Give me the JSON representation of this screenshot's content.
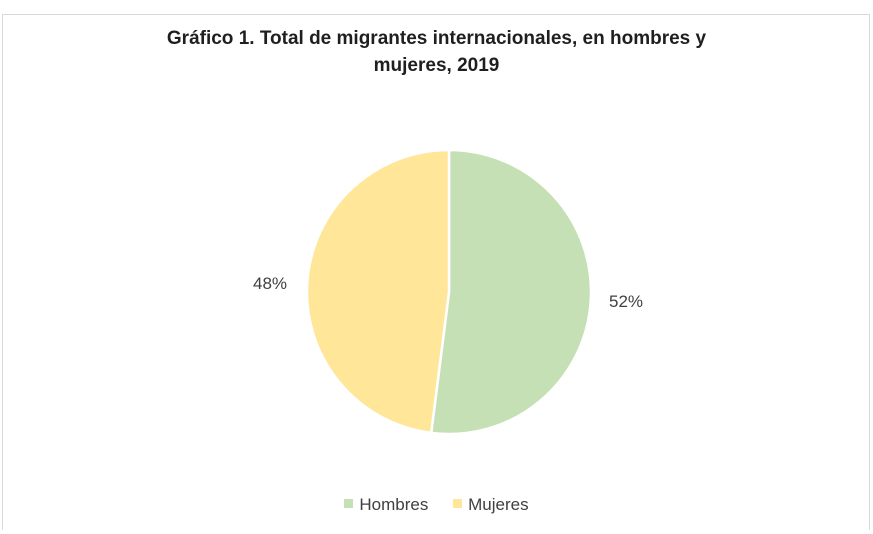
{
  "chart_data": {
    "type": "pie",
    "title_lines": [
      "Gráfico 1. Total de migrantes internacionales, en hombres y",
      "mujeres, 2019"
    ],
    "categories": [
      "Hombres",
      "Mujeres"
    ],
    "values": [
      52,
      48
    ],
    "data_labels": [
      "52%",
      "48%"
    ],
    "colors": [
      "#c5e0b4",
      "#ffe699"
    ],
    "legend_position": "bottom"
  }
}
